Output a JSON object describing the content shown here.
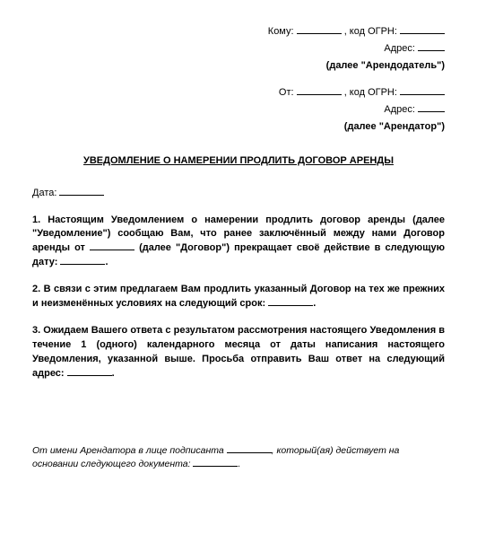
{
  "header": {
    "to_prefix": "Кому:",
    "ogrn_label": ", код ОГРН:",
    "address_label": "Адрес:",
    "landlord_label": "(далее \"Арендодатель\")",
    "from_prefix": "От:",
    "from_ogrn_label": ", код ОГРН:",
    "from_address_label": "Адрес:",
    "tenant_label": "(далее \"Арендатор\")"
  },
  "title": "УВЕДОМЛЕНИЕ О НАМЕРЕНИИ ПРОДЛИТЬ ДОГОВОР АРЕНДЫ",
  "date_label": "Дата:",
  "para1_a": "1. Настоящим Уведомлением о намерении продлить договор аренды (далее \"Уведомление\") сообщаю Вам, что ранее заключённый между нами Договор аренды от ",
  "para1_b": " (далее \"Договор\") прекращает своё действие в следующую дату: ",
  "para1_c": ".",
  "para2_a": "2. В связи с этим предлагаем Вам продлить указанный Договор на тех же прежних и неизменённых условиях на следующий срок: ",
  "para2_b": ".",
  "para3_a": "3. Ожидаем Вашего ответа с результатом рассмотрения настоящего Уведомления в течение 1 (одного) календарного месяца от даты написания настоящего Уведомления, указанной выше. Просьба отправить Ваш ответ на следующий адрес: ",
  "para3_b": ".",
  "sign_a": "От имени Арендатора в лице подписанта ",
  "sign_b": ", который(ая) действует на основании следующего документа: ",
  "sign_c": "."
}
